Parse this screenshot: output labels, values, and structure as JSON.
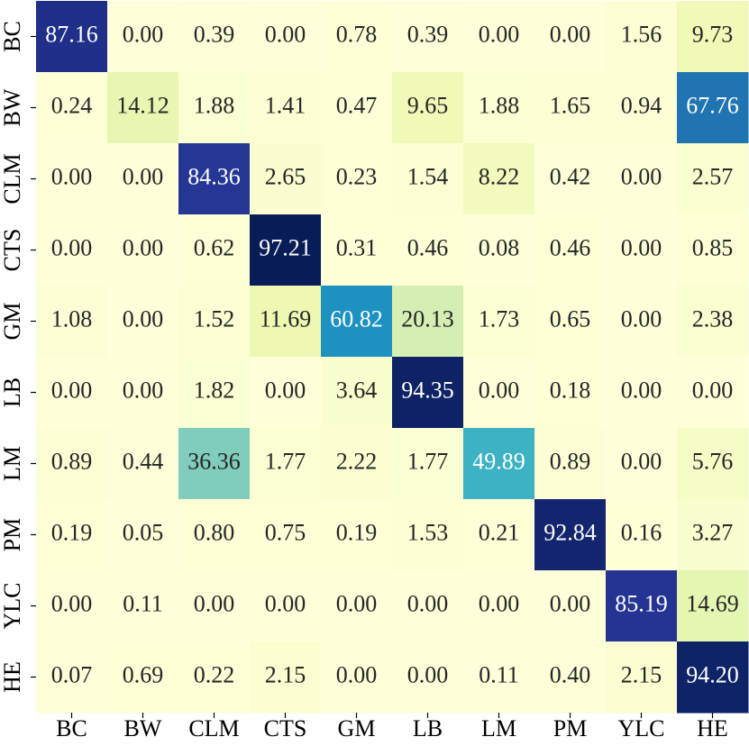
{
  "chart_data": {
    "type": "heatmap",
    "x_categories": [
      "BC",
      "BW",
      "CLM",
      "CTS",
      "GM",
      "LB",
      "LM",
      "PM",
      "YLC",
      "HE"
    ],
    "y_categories": [
      "BC",
      "BW",
      "CLM",
      "CTS",
      "GM",
      "LB",
      "LM",
      "PM",
      "YLC",
      "HE"
    ],
    "values": [
      [
        87.16,
        0,
        0.39,
        0,
        0.78,
        0.39,
        0,
        0,
        1.56,
        9.73
      ],
      [
        0.24,
        14.12,
        1.88,
        1.41,
        0.47,
        9.65,
        1.88,
        1.65,
        0.94,
        67.76
      ],
      [
        0,
        0,
        84.36,
        2.65,
        0.23,
        1.54,
        8.22,
        0.42,
        0,
        2.57
      ],
      [
        0,
        0,
        0.62,
        97.21,
        0.31,
        0.46,
        0.08,
        0.46,
        0,
        0.85
      ],
      [
        1.08,
        0,
        1.52,
        11.69,
        60.82,
        20.13,
        1.73,
        0.65,
        0,
        2.38
      ],
      [
        0,
        0,
        1.82,
        0,
        3.64,
        94.35,
        0,
        0.18,
        0,
        0
      ],
      [
        0.89,
        0.44,
        36.36,
        1.77,
        2.22,
        1.77,
        49.89,
        0.89,
        0,
        5.76
      ],
      [
        0.19,
        0.05,
        0.8,
        0.75,
        0.19,
        1.53,
        0.21,
        92.84,
        0.16,
        3.27
      ],
      [
        0,
        0.11,
        0,
        0,
        0,
        0,
        0,
        0,
        85.19,
        14.69
      ],
      [
        0.07,
        0.69,
        0.22,
        2.15,
        0,
        0,
        0.11,
        0.4,
        2.15,
        94.2
      ]
    ],
    "value_labels": [
      [
        "87.16",
        "0.00",
        "0.39",
        "0.00",
        "0.78",
        "0.39",
        "0.00",
        "0.00",
        "1.56",
        "9.73"
      ],
      [
        "0.24",
        "14.12",
        "1.88",
        "1.41",
        "0.47",
        "9.65",
        "1.88",
        "1.65",
        "0.94",
        "67.76"
      ],
      [
        "0.00",
        "0.00",
        "84.36",
        "2.65",
        "0.23",
        "1.54",
        "8.22",
        "0.42",
        "0.00",
        "2.57"
      ],
      [
        "0.00",
        "0.00",
        "0.62",
        "97.21",
        "0.31",
        "0.46",
        "0.08",
        "0.46",
        "0.00",
        "0.85"
      ],
      [
        "1.08",
        "0.00",
        "1.52",
        "11.69",
        "60.82",
        "20.13",
        "1.73",
        "0.65",
        "0.00",
        "2.38"
      ],
      [
        "0.00",
        "0.00",
        "1.82",
        "0.00",
        "3.64",
        "94.35",
        "0.00",
        "0.18",
        "0.00",
        "0.00"
      ],
      [
        "0.89",
        "0.44",
        "36.36",
        "1.77",
        "2.22",
        "1.77",
        "49.89",
        "0.89",
        "0.00",
        "5.76"
      ],
      [
        "0.19",
        "0.05",
        "0.80",
        "0.75",
        "0.19",
        "1.53",
        "0.21",
        "92.84",
        "0.16",
        "3.27"
      ],
      [
        "0.00",
        "0.11",
        "0.00",
        "0.00",
        "0.00",
        "0.00",
        "0.00",
        "0.00",
        "85.19",
        "14.69"
      ],
      [
        "0.07",
        "0.69",
        "0.22",
        "2.15",
        "0.00",
        "0.00",
        "0.11",
        "0.40",
        "2.15",
        "94.20"
      ]
    ],
    "colormap": [
      "#ffffd9",
      "#edf8b1",
      "#c7e9b4",
      "#7fcdbb",
      "#41b6c4",
      "#1d91c0",
      "#225ea8",
      "#253494",
      "#081d58"
    ]
  }
}
